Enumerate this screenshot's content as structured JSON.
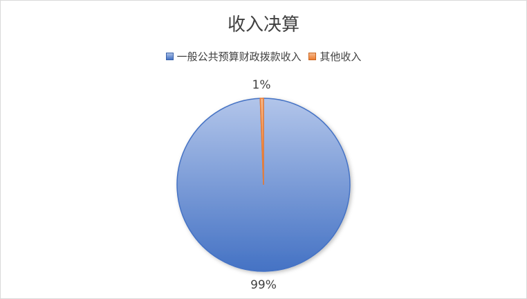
{
  "chart_data": {
    "type": "pie",
    "title": "收入决算",
    "legend_position": "top",
    "slices": [
      {
        "name": "一般公共预算财政拨款收入",
        "value": 99.4,
        "label": "99%",
        "color": "#4472c4"
      },
      {
        "name": "其他收入",
        "value": 0.6,
        "label": "1%",
        "color": "#ed7d31"
      }
    ]
  }
}
